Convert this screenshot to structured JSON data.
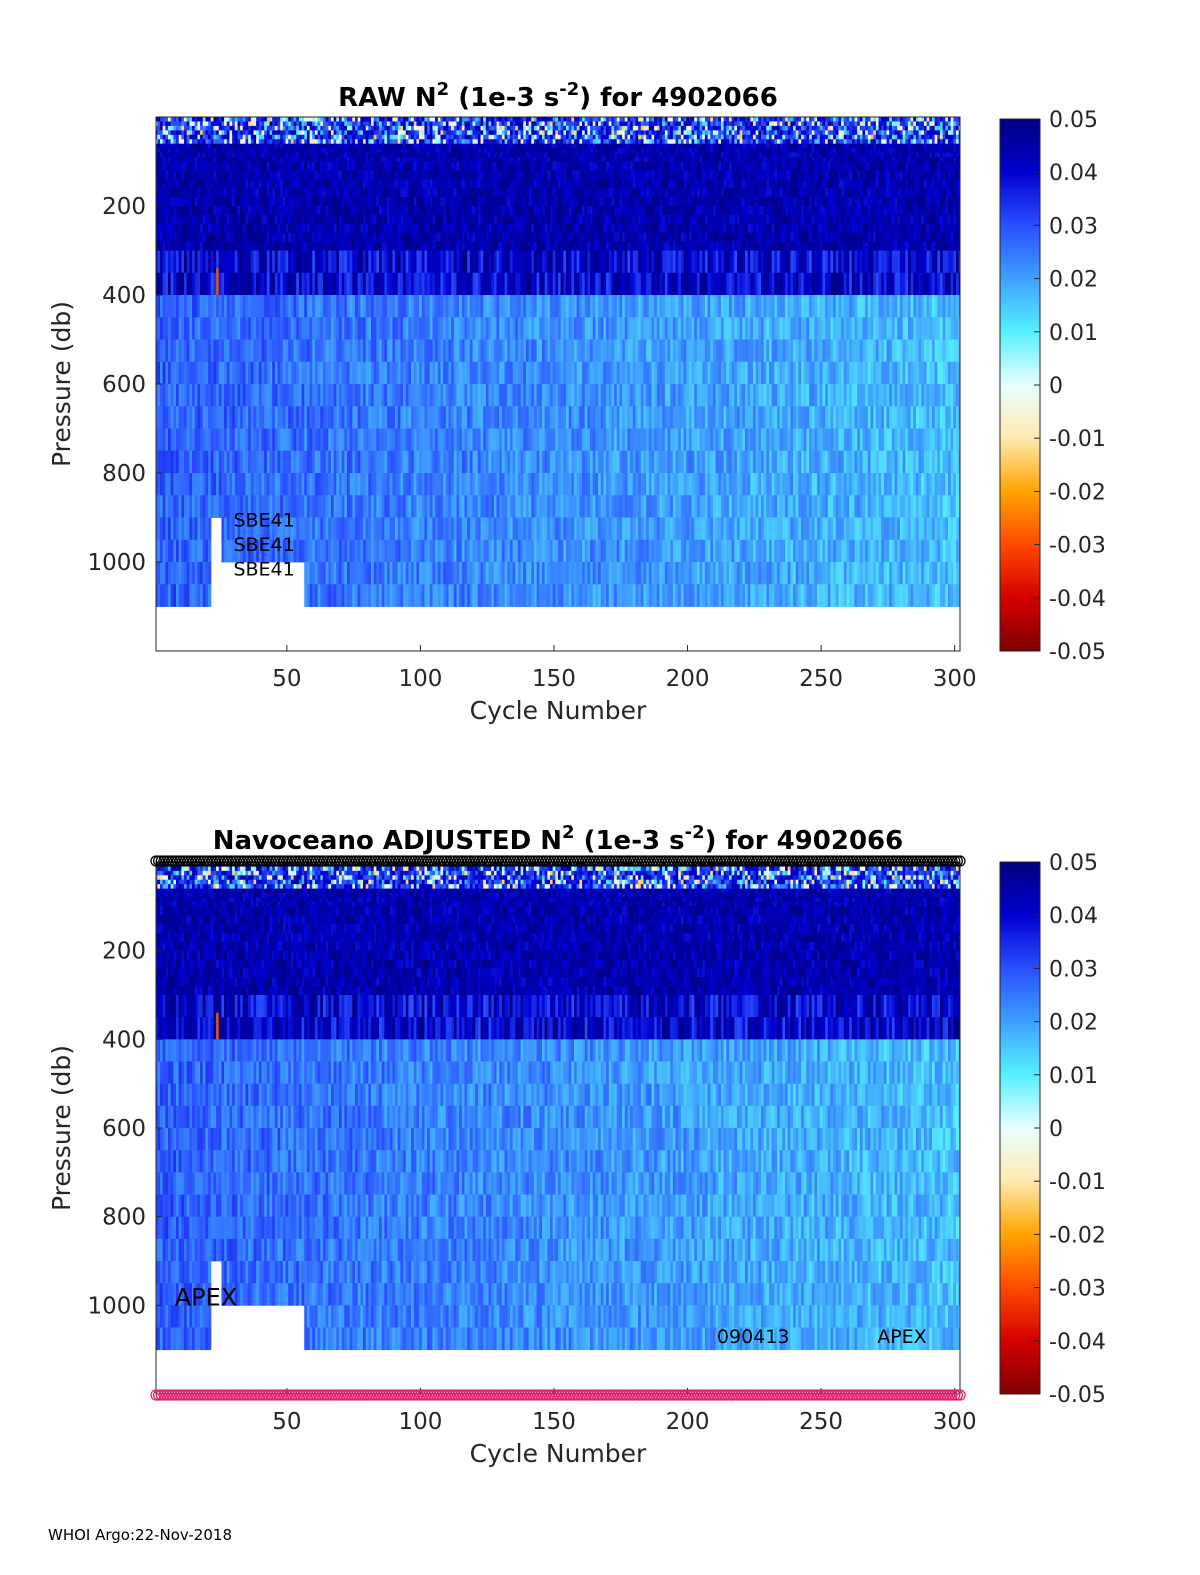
{
  "footer": "WHOI Argo:22-Nov-2018",
  "chart_data": [
    {
      "type": "heatmap",
      "title": {
        "pre": "RAW N",
        "sup1": "2",
        "mid": " (1e-3 s",
        "sup2": "-2",
        "post": ") for 4902066"
      },
      "xlabel": "Cycle Number",
      "ylabel": "Pressure (db)",
      "xlim": [
        1,
        302
      ],
      "ylim": [
        1200,
        0
      ],
      "y_reversed": true,
      "xticks": [
        50,
        100,
        150,
        200,
        250,
        300
      ],
      "yticks": [
        200,
        400,
        600,
        800,
        1000
      ],
      "colorbar": {
        "clim": [
          -0.05,
          0.05
        ],
        "ticks": [
          "0.05",
          "0.04",
          "0.03",
          "0.02",
          "0.01",
          "0",
          "-0.01",
          "-0.02",
          "-0.03",
          "-0.04",
          "-0.05"
        ],
        "colormap": [
          "#7f0000",
          "#d40000",
          "#ff4a00",
          "#ffa500",
          "#ffe9b0",
          "#e8ffff",
          "#56f0ff",
          "#3f9fff",
          "#2a4fff",
          "#0000d0",
          "#00007f"
        ]
      },
      "annotations": [
        {
          "text": "SBE41",
          "x": 30,
          "y": 920
        },
        {
          "text": "SBE41",
          "x": 30,
          "y": 975
        },
        {
          "text": "SBE41",
          "x": 30,
          "y": 1030
        }
      ],
      "top_marker_row": false,
      "bottom_marker_row": false
    },
    {
      "type": "heatmap",
      "title": {
        "pre": "Navoceano  ADJUSTED N",
        "sup1": "2",
        "mid": " (1e-3 s",
        "sup2": "-2",
        "post": ") for 4902066"
      },
      "xlabel": "Cycle Number",
      "ylabel": "Pressure (db)",
      "xlim": [
        1,
        302
      ],
      "ylim": [
        1200,
        0
      ],
      "y_reversed": true,
      "xticks": [
        50,
        100,
        150,
        200,
        250,
        300
      ],
      "yticks": [
        200,
        400,
        600,
        800,
        1000
      ],
      "colorbar": {
        "clim": [
          -0.05,
          0.05
        ],
        "ticks": [
          "0.05",
          "0.04",
          "0.03",
          "0.02",
          "0.01",
          "0",
          "-0.01",
          "-0.02",
          "-0.03",
          "-0.04",
          "-0.05"
        ],
        "colormap": [
          "#7f0000",
          "#d40000",
          "#ff4a00",
          "#ffa500",
          "#ffe9b0",
          "#e8ffff",
          "#56f0ff",
          "#3f9fff",
          "#2a4fff",
          "#0000d0",
          "#00007f"
        ]
      },
      "annotations": [
        {
          "text": "APEX",
          "x": 8,
          "y": 1000,
          "size": "large"
        },
        {
          "text": "090413",
          "x": 211,
          "y": 1085
        },
        {
          "text": "APEX",
          "x": 271,
          "y": 1085
        }
      ],
      "top_marker_row": true,
      "top_marker_color": "#000000",
      "bottom_marker_row": true,
      "bottom_marker_color": "#e0206a"
    }
  ]
}
